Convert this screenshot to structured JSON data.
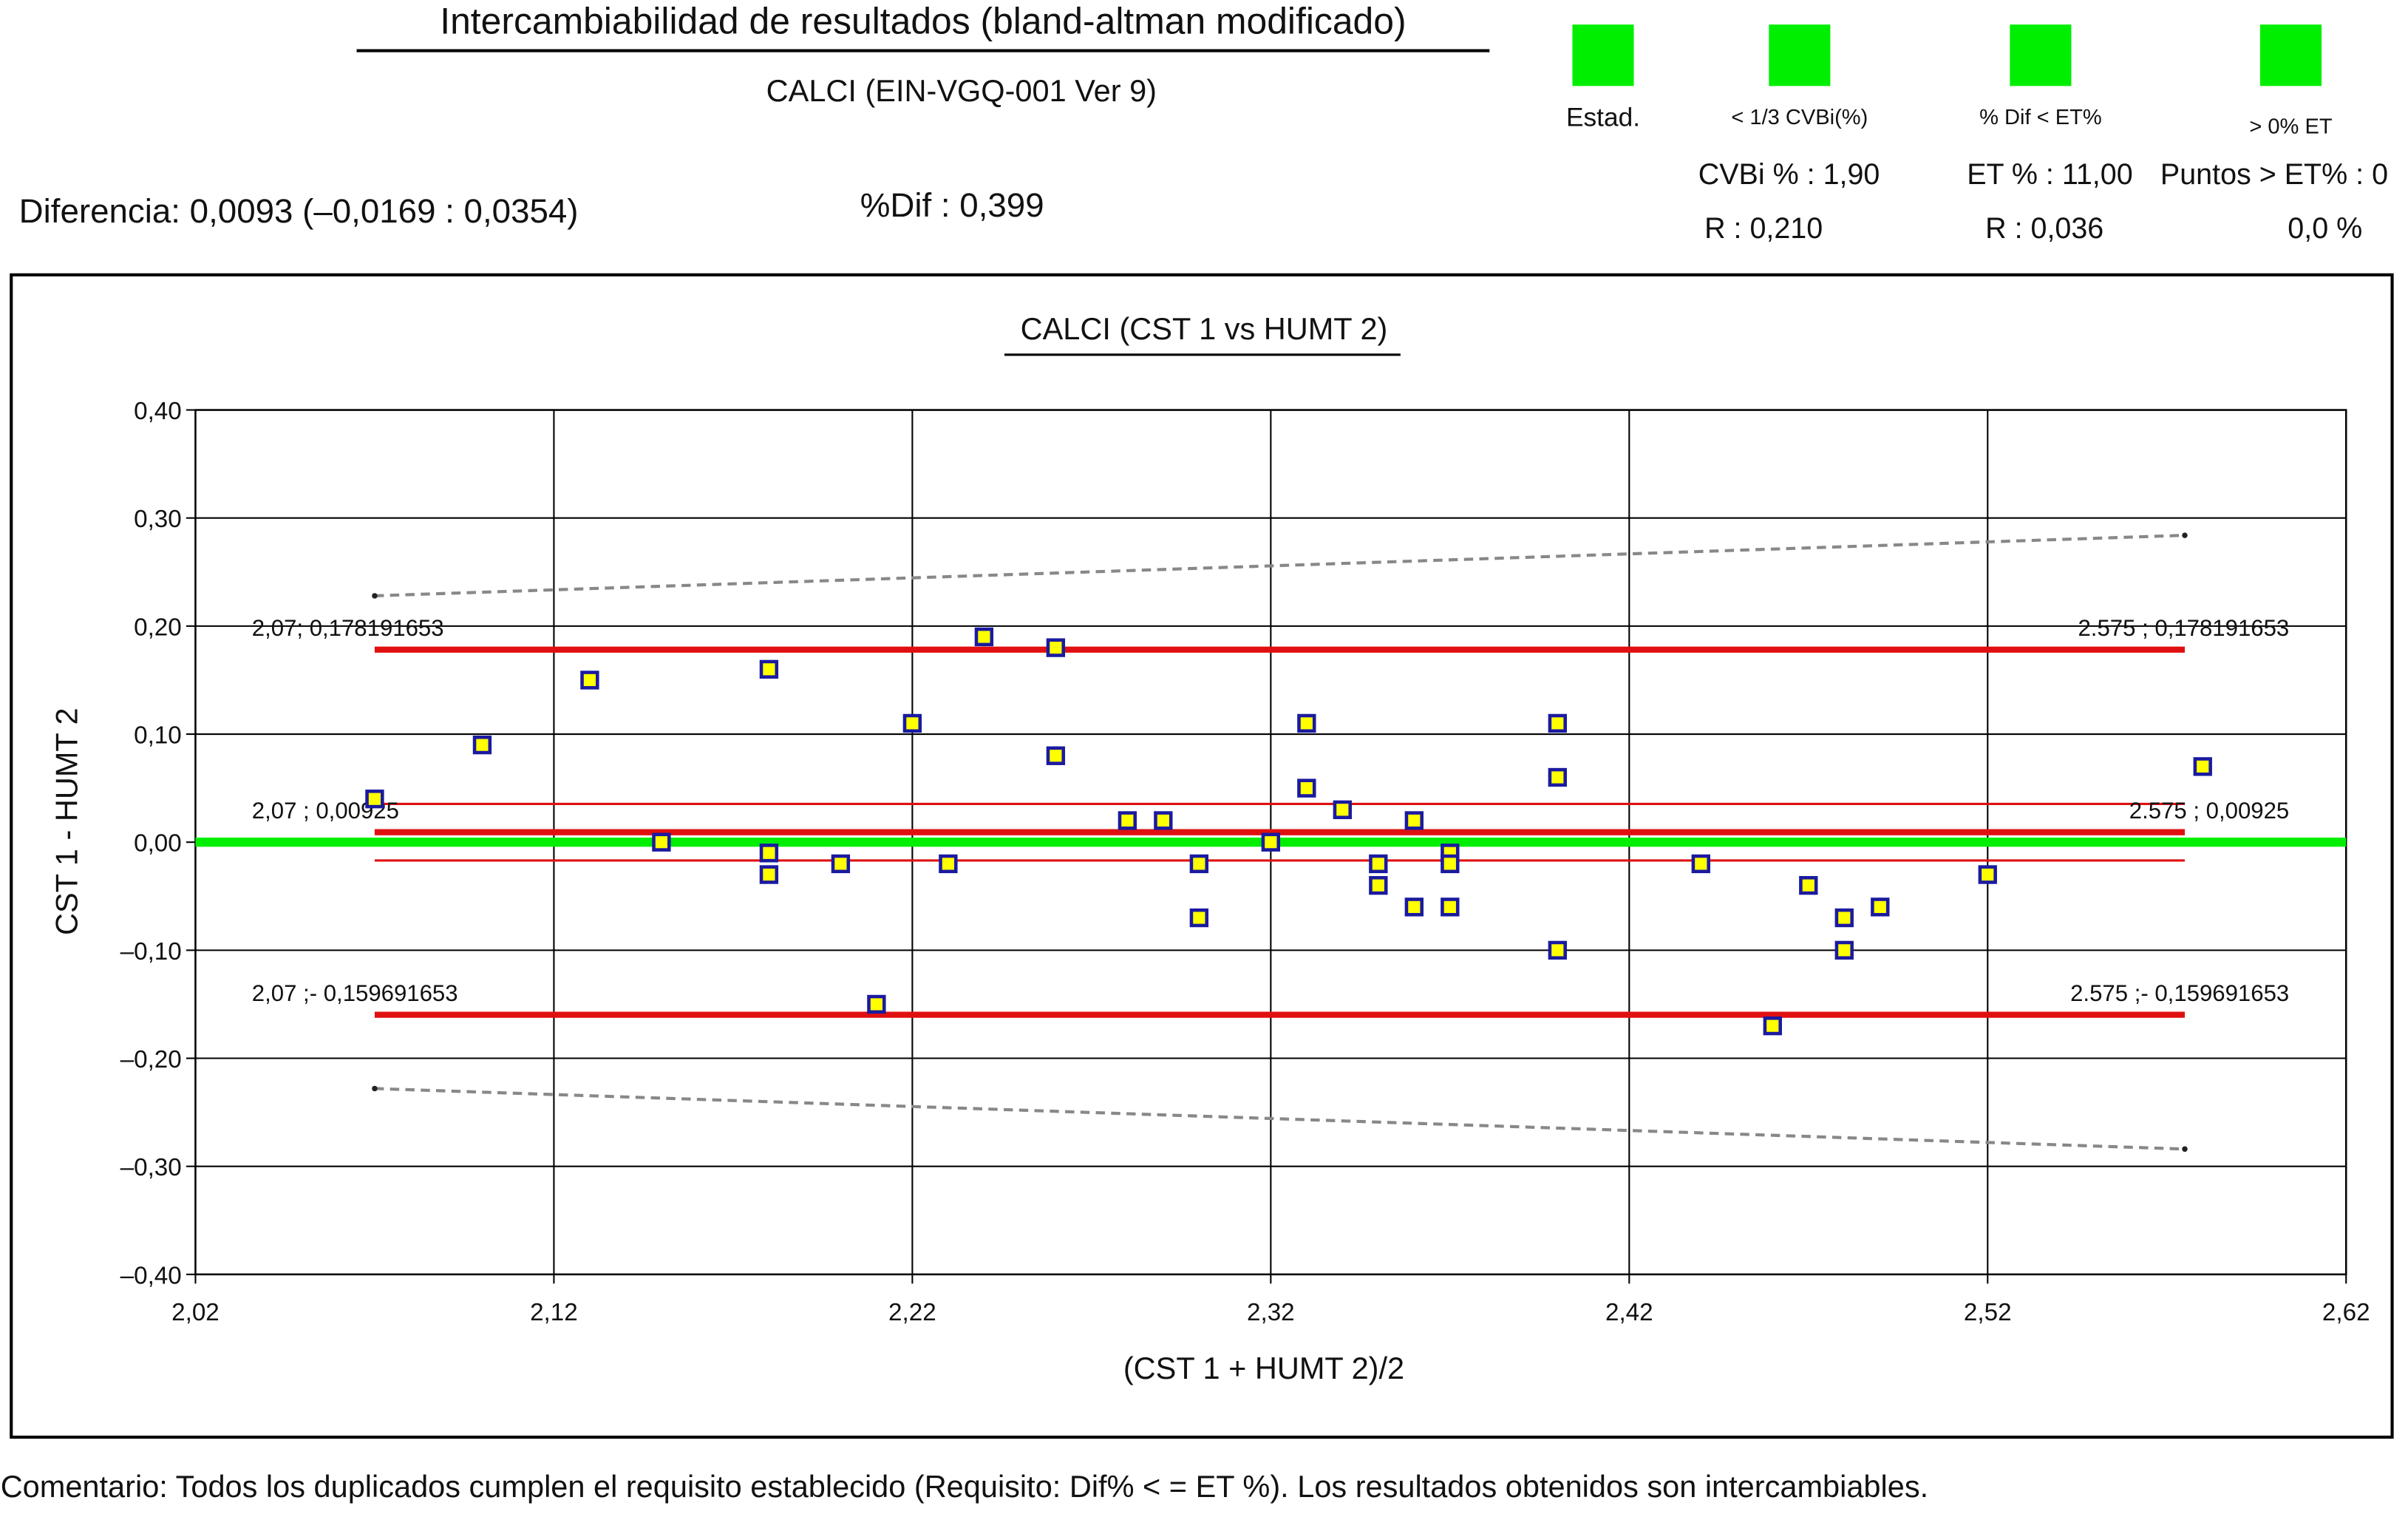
{
  "header": {
    "title": "Intercambiabilidad de resultados (bland-altman modificado)",
    "subtitle": "CALCI (EIN-VGQ-001 Ver 9)",
    "difference": "Diferencia: 0,0093 (–0,0169 : 0,0354)",
    "pct_dif": "%Dif : 0,399",
    "legend": [
      "Estad.",
      "< 1/3 CVBi(%)",
      "% Dif  <  ET%",
      ">  0% ET"
    ],
    "legend_color": "#00ee00",
    "stats": [
      "CVBi % : 1,90",
      "ET % : 11,00",
      "Puntos > ET% : 0",
      "R : 0,210",
      "R : 0,036",
      "0,0 %"
    ]
  },
  "chart_data": {
    "type": "scatter",
    "title": "CALCI  (CST 1 vs HUMT 2)",
    "xlabel": "(CST 1 + HUMT 2)/2",
    "ylabel": "CST 1 - HUMT 2",
    "xlim": [
      2.02,
      2.62
    ],
    "xticks": [
      {
        "value": 2.02,
        "label": "2,02"
      },
      {
        "value": 2.12,
        "label": "2,12"
      },
      {
        "value": 2.22,
        "label": "2,22"
      },
      {
        "value": 2.32,
        "label": "2,32"
      },
      {
        "value": 2.42,
        "label": "2,42"
      },
      {
        "value": 2.52,
        "label": "2,52"
      },
      {
        "value": 2.62,
        "label": "2,62"
      }
    ],
    "ylim": [
      -0.4,
      0.4
    ],
    "yticks": [
      {
        "value": 0.4,
        "label": "0,40"
      },
      {
        "value": 0.3,
        "label": "0,30"
      },
      {
        "value": 0.2,
        "label": "0,20"
      },
      {
        "value": 0.1,
        "label": "0,10"
      },
      {
        "value": 0,
        "label": "0,00"
      },
      {
        "value": -0.1,
        "label": "–0,10"
      },
      {
        "value": -0.2,
        "label": "–0,20"
      },
      {
        "value": -0.3,
        "label": "–0,30"
      },
      {
        "value": -0.4,
        "label": "–0,40"
      }
    ],
    "grid": true,
    "marker_fill": "#ffff00",
    "marker_edge": "#1a1aa0",
    "x": [
      2.07,
      2.1,
      2.13,
      2.15,
      2.18,
      2.18,
      2.18,
      2.2,
      2.21,
      2.22,
      2.23,
      2.24,
      2.26,
      2.26,
      2.28,
      2.29,
      2.3,
      2.3,
      2.32,
      2.33,
      2.33,
      2.34,
      2.35,
      2.35,
      2.36,
      2.36,
      2.37,
      2.37,
      2.37,
      2.4,
      2.4,
      2.4,
      2.44,
      2.46,
      2.47,
      2.48,
      2.48,
      2.49,
      2.52,
      2.58
    ],
    "values": [
      0.04,
      0.09,
      0.15,
      0.0,
      0.16,
      -0.01,
      -0.03,
      -0.02,
      -0.15,
      0.11,
      -0.02,
      0.19,
      0.18,
      0.08,
      0.02,
      0.02,
      -0.02,
      -0.07,
      0.0,
      0.11,
      0.05,
      0.03,
      -0.02,
      -0.04,
      0.02,
      -0.06,
      -0.01,
      -0.02,
      -0.06,
      0.11,
      0.06,
      -0.1,
      -0.02,
      -0.17,
      -0.04,
      -0.07,
      -0.1,
      -0.06,
      -0.03,
      0.07
    ],
    "reference_lines": [
      {
        "x": [
          2.02,
          2.62
        ],
        "values": [
          0,
          0
        ],
        "color": "#00ee00",
        "width": 6
      },
      {
        "x": [
          2.07,
          2.575
        ],
        "values": [
          0.228,
          0.284
        ],
        "color": "#888888",
        "width": 2,
        "dash": true
      },
      {
        "x": [
          2.07,
          2.575
        ],
        "values": [
          -0.228,
          -0.284
        ],
        "color": "#888888",
        "width": 2,
        "dash": true
      },
      {
        "x": [
          2.07,
          2.575
        ],
        "values": [
          0.178191653,
          0.178191653
        ],
        "color": "#e01010",
        "width": 4,
        "labels": [
          "2,07; 0,178191653",
          "2.575 ; 0,178191653"
        ]
      },
      {
        "x": [
          2.07,
          2.575
        ],
        "values": [
          0.0354,
          0.0354
        ],
        "color": "#e01010",
        "width": 1.5
      },
      {
        "x": [
          2.07,
          2.575
        ],
        "values": [
          0.00925,
          0.00925
        ],
        "color": "#e01010",
        "width": 4,
        "labels": [
          "2,07 ; 0,00925",
          "2.575 ; 0,00925"
        ]
      },
      {
        "x": [
          2.07,
          2.575
        ],
        "values": [
          -0.0169,
          -0.0169
        ],
        "color": "#e01010",
        "width": 1.5
      },
      {
        "x": [
          2.07,
          2.575
        ],
        "values": [
          -0.159691653,
          -0.159691653
        ],
        "color": "#e01010",
        "width": 4,
        "labels": [
          "2,07 ;- 0,159691653",
          "2.575 ;- 0,159691653"
        ]
      }
    ]
  },
  "comment": "Comentario: Todos los duplicados cumplen el requisito establecido (Requisito: Dif% < = ET %). Los resultados obtenidos son intercambiables."
}
